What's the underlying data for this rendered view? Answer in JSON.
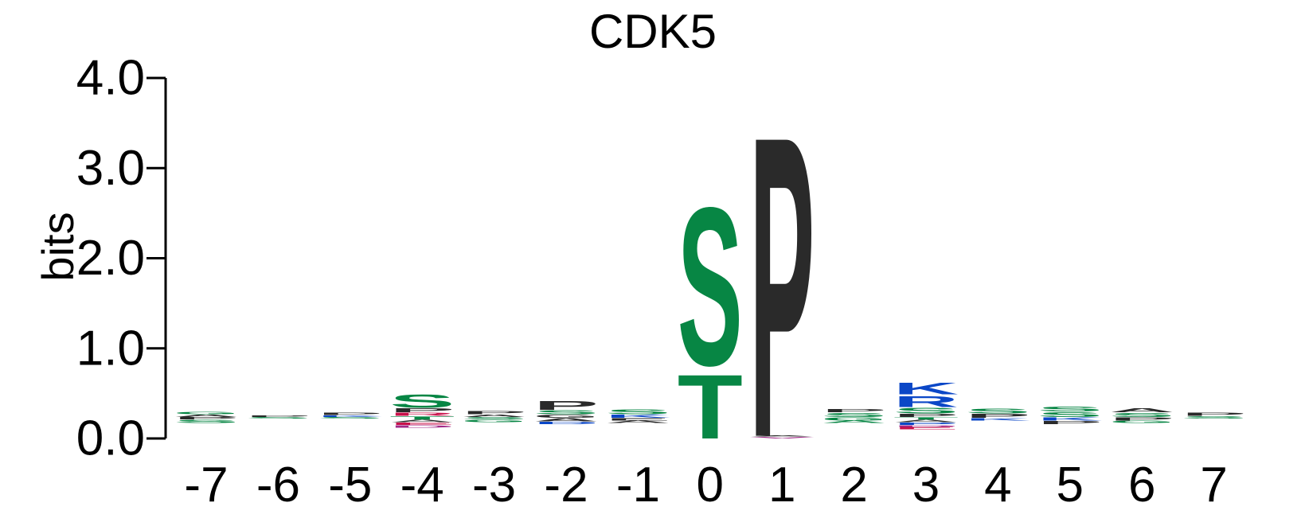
{
  "chart_data": {
    "type": "sequence-logo",
    "title": "CDK5",
    "ylabel": "bits",
    "xlabel": "",
    "ylim": [
      0,
      4
    ],
    "yticks": [
      "0.0",
      "1.0",
      "2.0",
      "3.0",
      "4.0"
    ],
    "positions": [
      {
        "label": "-7",
        "base": 0.17,
        "letters": [
          {
            "char": "S",
            "bits": 0.04,
            "color": "#078644"
          },
          {
            "char": "P",
            "bits": 0.03,
            "color": "#2a2a2a"
          },
          {
            "char": "A",
            "bits": 0.03,
            "color": "#2a2a2a"
          },
          {
            "char": "G",
            "bits": 0.03,
            "color": "#078644"
          }
        ]
      },
      {
        "label": "-6",
        "base": 0.22,
        "letters": [
          {
            "char": "S",
            "bits": 0.02,
            "color": "#078644"
          },
          {
            "char": "P",
            "bits": 0.02,
            "color": "#2a2a2a"
          }
        ]
      },
      {
        "label": "-5",
        "base": 0.22,
        "letters": [
          {
            "char": "S",
            "bits": 0.02,
            "color": "#078644"
          },
          {
            "char": "K",
            "bits": 0.02,
            "color": "#0b47c7"
          },
          {
            "char": "P",
            "bits": 0.03,
            "color": "#2a2a2a"
          }
        ]
      },
      {
        "label": "-4",
        "base": 0.12,
        "letters": [
          {
            "char": "D",
            "bits": 0.03,
            "color": "#a02a88"
          },
          {
            "char": "E",
            "bits": 0.03,
            "color": "#c8104a"
          },
          {
            "char": "A",
            "bits": 0.03,
            "color": "#2a2a2a"
          },
          {
            "char": "T",
            "bits": 0.04,
            "color": "#078644"
          },
          {
            "char": "R",
            "bits": 0.04,
            "color": "#c8104a"
          },
          {
            "char": "P",
            "bits": 0.05,
            "color": "#2a2a2a"
          },
          {
            "char": "S",
            "bits": 0.17,
            "color": "#078644"
          }
        ]
      },
      {
        "label": "-3",
        "base": 0.18,
        "letters": [
          {
            "char": "G",
            "bits": 0.03,
            "color": "#078644"
          },
          {
            "char": "S",
            "bits": 0.03,
            "color": "#078644"
          },
          {
            "char": "A",
            "bits": 0.03,
            "color": "#2a2a2a"
          },
          {
            "char": "P",
            "bits": 0.04,
            "color": "#2a2a2a"
          }
        ]
      },
      {
        "label": "-2",
        "base": 0.16,
        "letters": [
          {
            "char": "D",
            "bits": 0.03,
            "color": "#0b47c7"
          },
          {
            "char": "A",
            "bits": 0.04,
            "color": "#2a2a2a"
          },
          {
            "char": "G",
            "bits": 0.04,
            "color": "#2a2a2a"
          },
          {
            "char": "S",
            "bits": 0.05,
            "color": "#078644"
          },
          {
            "char": "P",
            "bits": 0.11,
            "color": "#2a2a2a"
          }
        ]
      },
      {
        "label": "-1",
        "base": 0.17,
        "letters": [
          {
            "char": "A",
            "bits": 0.03,
            "color": "#2a2a2a"
          },
          {
            "char": "E",
            "bits": 0.03,
            "color": "#2a2a2a"
          },
          {
            "char": "K",
            "bits": 0.04,
            "color": "#0b47c7"
          },
          {
            "char": "S",
            "bits": 0.06,
            "color": "#078644"
          }
        ]
      },
      {
        "label": "0",
        "base": 0.0,
        "letters": [
          {
            "char": "T",
            "bits": 0.82,
            "color": "#078644"
          },
          {
            "char": "S",
            "bits": 2.02,
            "color": "#078644"
          }
        ]
      },
      {
        "label": "1",
        "base": 0.0,
        "letters": [
          {
            "char": "V",
            "bits": 0.02,
            "color": "#a02a88"
          },
          {
            "char": "A",
            "bits": 0.01,
            "color": "#2a2a2a"
          },
          {
            "char": "P",
            "bits": 3.85,
            "color": "#2a2a2a"
          }
        ]
      },
      {
        "label": "2",
        "base": 0.17,
        "letters": [
          {
            "char": "A",
            "bits": 0.03,
            "color": "#078644"
          },
          {
            "char": "G",
            "bits": 0.04,
            "color": "#078644"
          },
          {
            "char": "S",
            "bits": 0.05,
            "color": "#078644"
          },
          {
            "char": "P",
            "bits": 0.04,
            "color": "#2a2a2a"
          }
        ]
      },
      {
        "label": "3",
        "base": 0.1,
        "letters": [
          {
            "char": "E",
            "bits": 0.03,
            "color": "#c8104a"
          },
          {
            "char": "D",
            "bits": 0.02,
            "color": "#a02a88"
          },
          {
            "char": "P",
            "bits": 0.03,
            "color": "#0b47c7"
          },
          {
            "char": "A",
            "bits": 0.03,
            "color": "#2a2a2a"
          },
          {
            "char": "T",
            "bits": 0.03,
            "color": "#078644"
          },
          {
            "char": "P",
            "bits": 0.04,
            "color": "#2a2a2a"
          },
          {
            "char": "S",
            "bits": 0.07,
            "color": "#078644"
          },
          {
            "char": "R",
            "bits": 0.14,
            "color": "#0b47c7"
          },
          {
            "char": "K",
            "bits": 0.15,
            "color": "#0b47c7"
          }
        ]
      },
      {
        "label": "4",
        "base": 0.2,
        "letters": [
          {
            "char": "K",
            "bits": 0.03,
            "color": "#0b47c7"
          },
          {
            "char": "P",
            "bits": 0.05,
            "color": "#2a2a2a"
          },
          {
            "char": "S",
            "bits": 0.06,
            "color": "#078644"
          }
        ]
      },
      {
        "label": "5",
        "base": 0.16,
        "letters": [
          {
            "char": "P",
            "bits": 0.04,
            "color": "#2a2a2a"
          },
          {
            "char": "K",
            "bits": 0.04,
            "color": "#0b47c7"
          },
          {
            "char": "S",
            "bits": 0.06,
            "color": "#078644"
          },
          {
            "char": "S",
            "bits": 0.06,
            "color": "#078644"
          }
        ]
      },
      {
        "label": "6",
        "base": 0.17,
        "letters": [
          {
            "char": "G",
            "bits": 0.03,
            "color": "#078644"
          },
          {
            "char": "P",
            "bits": 0.04,
            "color": "#2a2a2a"
          },
          {
            "char": "S",
            "bits": 0.05,
            "color": "#078644"
          },
          {
            "char": "A",
            "bits": 0.05,
            "color": "#2a2a2a"
          }
        ]
      },
      {
        "label": "7",
        "base": 0.22,
        "letters": [
          {
            "char": "S",
            "bits": 0.03,
            "color": "#078644"
          },
          {
            "char": "P",
            "bits": 0.04,
            "color": "#2a2a2a"
          }
        ]
      }
    ]
  }
}
